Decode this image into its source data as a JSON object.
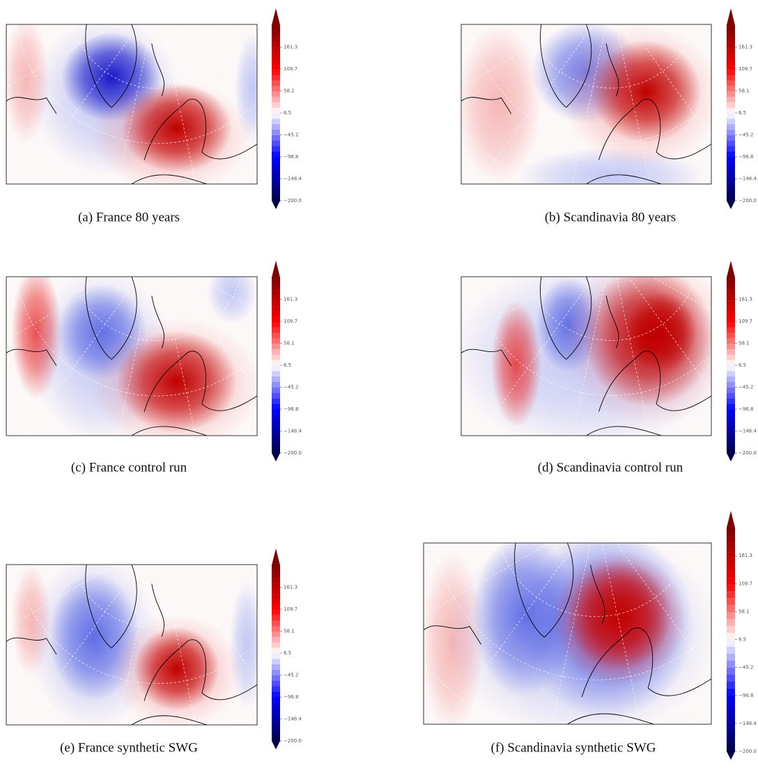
{
  "colorbar": {
    "lim": [
      -200,
      213
    ],
    "ticks": [
      161.3,
      109.7,
      58.1,
      6.5,
      {
        "value": -45.2,
        "label": "−45.2"
      },
      {
        "value": -96.8,
        "label": "−96.8"
      },
      {
        "value": -148.4,
        "label": "−148.4"
      },
      {
        "value": -200,
        "label": "−200.0"
      }
    ]
  },
  "panels": [
    {
      "caption": "(a) France 80 years"
    },
    {
      "caption": "(b) Scandinavia 80 years"
    },
    {
      "caption": "(c) France control run"
    },
    {
      "caption": "(d) Scandinavia control run"
    },
    {
      "caption": "(e) France synthetic SWG"
    },
    {
      "caption": "(f) Scandinavia synthetic SWG"
    }
  ]
}
